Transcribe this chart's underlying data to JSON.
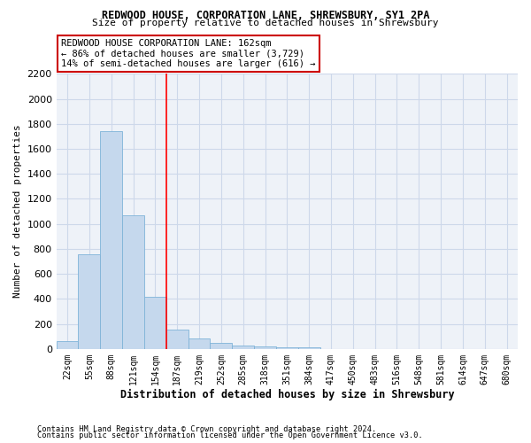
{
  "title": "REDWOOD HOUSE, CORPORATION LANE, SHREWSBURY, SY1 2PA",
  "subtitle": "Size of property relative to detached houses in Shrewsbury",
  "xlabel": "Distribution of detached houses by size in Shrewsbury",
  "ylabel": "Number of detached properties",
  "footnote1": "Contains HM Land Registry data © Crown copyright and database right 2024.",
  "footnote2": "Contains public sector information licensed under the Open Government Licence v3.0.",
  "bin_labels": [
    "22sqm",
    "55sqm",
    "88sqm",
    "121sqm",
    "154sqm",
    "187sqm",
    "219sqm",
    "252sqm",
    "285sqm",
    "318sqm",
    "351sqm",
    "384sqm",
    "417sqm",
    "450sqm",
    "483sqm",
    "516sqm",
    "548sqm",
    "581sqm",
    "614sqm",
    "647sqm",
    "680sqm"
  ],
  "bar_values": [
    60,
    760,
    1740,
    1070,
    415,
    155,
    80,
    45,
    30,
    20,
    10,
    10,
    0,
    0,
    0,
    0,
    0,
    0,
    0,
    0,
    0
  ],
  "bar_color": "#c5d8ed",
  "bar_edge_color": "#7fb3d8",
  "grid_color": "#cdd8ea",
  "background_color": "#eef2f8",
  "red_line_x": 4.5,
  "annotation_text": "REDWOOD HOUSE CORPORATION LANE: 162sqm\n← 86% of detached houses are smaller (3,729)\n14% of semi-detached houses are larger (616) →",
  "annotation_box_color": "#ffffff",
  "annotation_box_edge": "#cc0000",
  "ylim": [
    0,
    2200
  ],
  "yticks": [
    0,
    200,
    400,
    600,
    800,
    1000,
    1200,
    1400,
    1600,
    1800,
    2000,
    2200
  ]
}
